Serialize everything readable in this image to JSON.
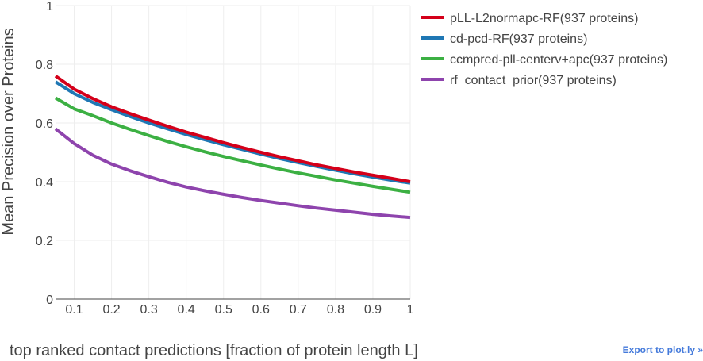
{
  "export_label": "Export to plot.ly »",
  "chart_data": {
    "type": "line",
    "title": "",
    "xlabel": "top ranked contact predictions [fraction of protein length L]",
    "ylabel": "Mean Precision over Proteins",
    "xlim": [
      0.05,
      1.0
    ],
    "ylim": [
      0,
      1
    ],
    "xticks": [
      0.1,
      0.2,
      0.3,
      0.4,
      0.5,
      0.6,
      0.7,
      0.8,
      0.9,
      1
    ],
    "yticks": [
      0,
      0.2,
      0.4,
      0.6,
      0.8,
      1
    ],
    "xtick_labels": [
      "0.1",
      "0.2",
      "0.3",
      "0.4",
      "0.5",
      "0.6",
      "0.7",
      "0.8",
      "0.9",
      "1"
    ],
    "ytick_labels": [
      "0",
      "0.2",
      "0.4",
      "0.6",
      "0.8",
      "1"
    ],
    "grid": true,
    "legend_position": "top-right",
    "x": [
      0.05,
      0.1,
      0.15,
      0.2,
      0.25,
      0.3,
      0.35,
      0.4,
      0.45,
      0.5,
      0.55,
      0.6,
      0.65,
      0.7,
      0.75,
      0.8,
      0.85,
      0.9,
      0.95,
      1.0
    ],
    "series": [
      {
        "name": "pLL-L2normapc-RF(937 proteins)",
        "color": "#d4001a",
        "values": [
          0.76,
          0.715,
          0.683,
          0.655,
          0.632,
          0.61,
          0.589,
          0.569,
          0.551,
          0.533,
          0.516,
          0.5,
          0.485,
          0.471,
          0.457,
          0.445,
          0.433,
          0.422,
          0.411,
          0.4
        ]
      },
      {
        "name": "cd-pcd-RF(937 proteins)",
        "color": "#1f77b4",
        "values": [
          0.74,
          0.7,
          0.67,
          0.645,
          0.622,
          0.6,
          0.58,
          0.561,
          0.543,
          0.526,
          0.51,
          0.494,
          0.479,
          0.465,
          0.452,
          0.439,
          0.427,
          0.416,
          0.405,
          0.395
        ]
      },
      {
        "name": "ccmpred-pll-centerv+apc(937 proteins)",
        "color": "#3cb043",
        "values": [
          0.685,
          0.648,
          0.625,
          0.6,
          0.578,
          0.557,
          0.537,
          0.519,
          0.502,
          0.486,
          0.471,
          0.457,
          0.443,
          0.43,
          0.418,
          0.406,
          0.395,
          0.384,
          0.374,
          0.364
        ]
      },
      {
        "name": "rf_contact_prior(937 proteins)",
        "color": "#8e44ad",
        "values": [
          0.58,
          0.53,
          0.49,
          0.46,
          0.437,
          0.417,
          0.398,
          0.382,
          0.369,
          0.357,
          0.346,
          0.336,
          0.327,
          0.318,
          0.31,
          0.303,
          0.296,
          0.289,
          0.283,
          0.278
        ]
      }
    ]
  }
}
